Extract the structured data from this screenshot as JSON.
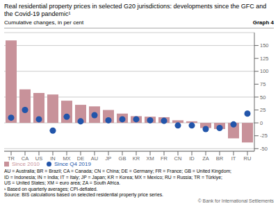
{
  "chart_data": {
    "type": "bar",
    "title": "Real residential property prices in selected G20 jurisdictions: developments since the GFC and the Covid-19 pandemic¹",
    "subtitle": "Cumulative changes, in per cent",
    "annotations": [
      "Graph 4",
      "AU = Australia; BR = Brazil; CA = Canada; CN = China; DE = Germany; FR = France; GB = United Kingdom;",
      "ID = Indonesia; IN = India; IT = Italy; JP = Japan; KR = Korea; MX = Mexico; RU = Russia; TR = Türkiye;",
      "US = United States; XM = euro area; ZA = South Africa.",
      "¹  Based on quarterly averages; CPI-deflated.",
      "Source: BIS calculations based on selected residential property price series.",
      "© Bank for International Settlements"
    ],
    "categories": [
      "TR",
      "CA",
      "US",
      "IN",
      "MX",
      "DE",
      "AU",
      "JP",
      "GB",
      "KR",
      "XM",
      "FR",
      "CN",
      "ID",
      "ZA",
      "BR",
      "IT",
      "RU"
    ],
    "series": [
      {
        "name": "Since 2010",
        "type": "bar",
        "color": "#c8929a",
        "values": [
          160,
          65,
          58,
          55,
          43,
          35,
          32,
          25,
          18,
          13,
          12,
          11,
          5,
          3,
          -10,
          -12,
          -30,
          -38
        ]
      },
      {
        "name": "Since Q4 2019",
        "type": "scatter",
        "color": "#2255aa",
        "values": [
          10,
          25,
          7,
          -15,
          12,
          3,
          15,
          5,
          7,
          7,
          5,
          4,
          -5,
          -5,
          -12,
          -10,
          -3,
          18
        ]
      }
    ],
    "ylim": [
      -55,
      175
    ],
    "yticks": [
      -50,
      -25,
      0,
      25,
      50,
      75,
      100,
      125,
      150
    ],
    "grid": true,
    "legend": "lower left"
  }
}
